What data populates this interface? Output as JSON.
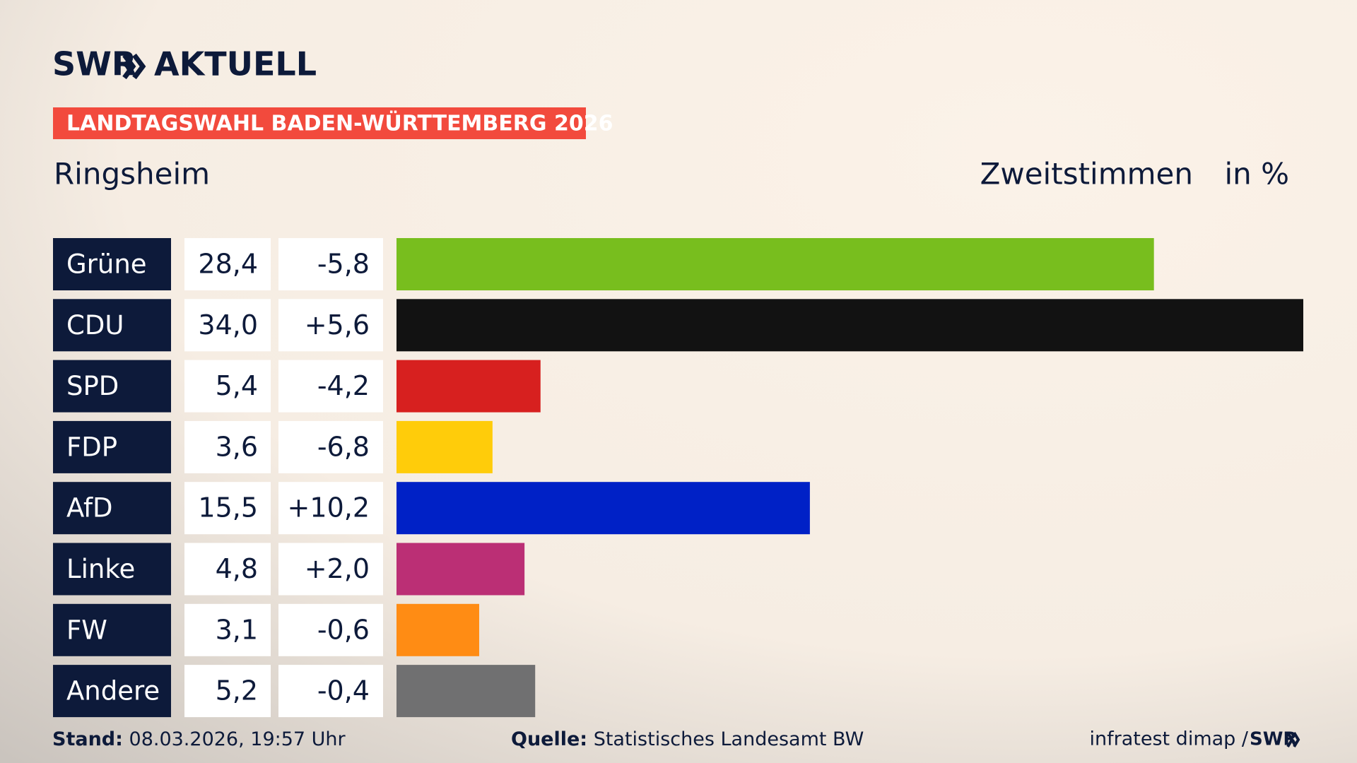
{
  "brand": "SWR",
  "brand_suffix": "AKTUELL",
  "banner": "LANDTAGSWAHL BADEN-WÜRTTEMBERG 2026",
  "chart_data": {
    "type": "bar",
    "orientation": "horizontal",
    "title": "Ringsheim",
    "subtitle": "Zweitstimmen",
    "unit": "in %",
    "categories": [
      "Grüne",
      "CDU",
      "SPD",
      "FDP",
      "AfD",
      "Linke",
      "FW",
      "Andere"
    ],
    "values": [
      28.4,
      34.0,
      5.4,
      3.6,
      15.5,
      4.8,
      3.1,
      5.2
    ],
    "value_labels": [
      "28,4",
      "34,0",
      "5,4",
      "3,6",
      "15,5",
      "4,8",
      "3,1",
      "5,2"
    ],
    "changes": [
      -5.8,
      5.6,
      -4.2,
      -6.8,
      10.2,
      2.0,
      -0.6,
      -0.4
    ],
    "change_labels": [
      "-5,8",
      "+5,6",
      "-4,2",
      "-6,8",
      "+10,2",
      "+2,0",
      "-0,6",
      "-0,4"
    ],
    "colors": [
      "#78be1e",
      "#121212",
      "#d7201f",
      "#ffcc0a",
      "#0021c6",
      "#bb2f75",
      "#ff8c14",
      "#707071"
    ],
    "xlim": [
      0,
      34
    ]
  },
  "footer": {
    "stand_label": "Stand:",
    "stand": "08.03.2026, 19:57 Uhr",
    "source_label": "Quelle:",
    "source": "Statistisches Landesamt BW",
    "credit": "infratest dimap /",
    "credit_brand": "SWR"
  }
}
